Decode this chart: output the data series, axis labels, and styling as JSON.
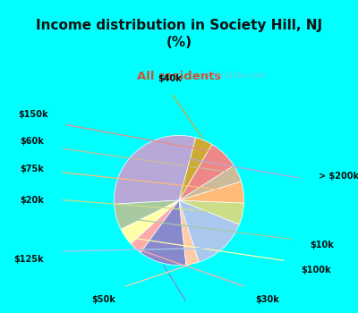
{
  "title": "Income distribution in Society Hill, NJ\n(%)",
  "subtitle": "All residents",
  "title_color": "#111111",
  "subtitle_color": "#cc5533",
  "background_cyan": "#00ffff",
  "background_chart": "#e0f0e8",
  "watermark": "ⓘ City-Data.com",
  "labels": [
    "> $200k",
    "$10k",
    "$100k",
    "$30k",
    "$200k",
    "$50k",
    "$125k",
    "$20k",
    "$75k",
    "$60k",
    "$150k",
    "$40k"
  ],
  "values": [
    28,
    6,
    4,
    3,
    11,
    3,
    13,
    5,
    5,
    4,
    7,
    4
  ],
  "colors": [
    "#b8a8d8",
    "#a8c8a0",
    "#ffffaa",
    "#ffaaaa",
    "#8888cc",
    "#ffccaa",
    "#aac8ee",
    "#ccdd88",
    "#ffbb77",
    "#ccbb99",
    "#ee8888",
    "#ccaa33"
  ],
  "line_colors": [
    "#b8a8d8",
    "#a8c8a0",
    "#ffffaa",
    "#ffaaaa",
    "#8888cc",
    "#ffccaa",
    "#aac8ee",
    "#ccdd88",
    "#ffbb77",
    "#ccbb99",
    "#ee8888",
    "#ccaa33"
  ],
  "startangle": 75,
  "figsize": [
    4.0,
    3.5
  ],
  "dpi": 100
}
